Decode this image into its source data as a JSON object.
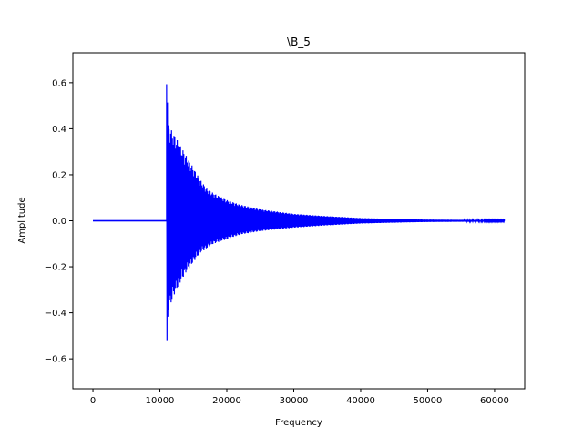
{
  "chart_data": {
    "type": "line",
    "title": "\\B_5",
    "xlabel": "Frequency",
    "ylabel": "Amplitude",
    "xlim": [
      -3000,
      64500
    ],
    "ylim": [
      -0.73,
      0.73
    ],
    "xticks": [
      0,
      10000,
      20000,
      30000,
      40000,
      50000,
      60000
    ],
    "xtick_labels": [
      "0",
      "10000",
      "20000",
      "30000",
      "40000",
      "50000",
      "60000"
    ],
    "yticks": [
      -0.6,
      -0.4,
      -0.2,
      0.0,
      0.2,
      0.4,
      0.6
    ],
    "ytick_labels": [
      "−0.6",
      "−0.4",
      "−0.2",
      "0.0",
      "0.2",
      "0.4",
      "0.6"
    ],
    "grid": false,
    "series": [
      {
        "color": "#0000ff",
        "x_start": 0,
        "x_end": 61500,
        "x_onset": 11000,
        "positive_envelope": [
          [
            0,
            0.0
          ],
          [
            10950,
            0.0
          ],
          [
            11000,
            0.66
          ],
          [
            11100,
            0.62
          ],
          [
            11200,
            0.42
          ],
          [
            12000,
            0.38
          ],
          [
            13000,
            0.33
          ],
          [
            14000,
            0.28
          ],
          [
            15000,
            0.23
          ],
          [
            16000,
            0.18
          ],
          [
            17000,
            0.14
          ],
          [
            18000,
            0.12
          ],
          [
            20000,
            0.09
          ],
          [
            22000,
            0.07
          ],
          [
            25000,
            0.05
          ],
          [
            30000,
            0.03
          ],
          [
            35000,
            0.02
          ],
          [
            40000,
            0.012
          ],
          [
            45000,
            0.008
          ],
          [
            50000,
            0.005
          ],
          [
            55000,
            0.004
          ],
          [
            61500,
            0.003
          ]
        ],
        "negative_envelope": [
          [
            0,
            0.0
          ],
          [
            10950,
            0.0
          ],
          [
            11000,
            -0.66
          ],
          [
            11100,
            -0.62
          ],
          [
            11200,
            -0.4
          ],
          [
            12000,
            -0.33
          ],
          [
            13000,
            -0.27
          ],
          [
            14000,
            -0.22
          ],
          [
            15000,
            -0.18
          ],
          [
            16000,
            -0.14
          ],
          [
            17000,
            -0.12
          ],
          [
            18000,
            -0.1
          ],
          [
            20000,
            -0.08
          ],
          [
            22000,
            -0.06
          ],
          [
            25000,
            -0.045
          ],
          [
            30000,
            -0.03
          ],
          [
            35000,
            -0.02
          ],
          [
            40000,
            -0.012
          ],
          [
            45000,
            -0.008
          ],
          [
            50000,
            -0.005
          ],
          [
            55000,
            -0.004
          ],
          [
            61500,
            -0.003
          ]
        ]
      }
    ]
  }
}
